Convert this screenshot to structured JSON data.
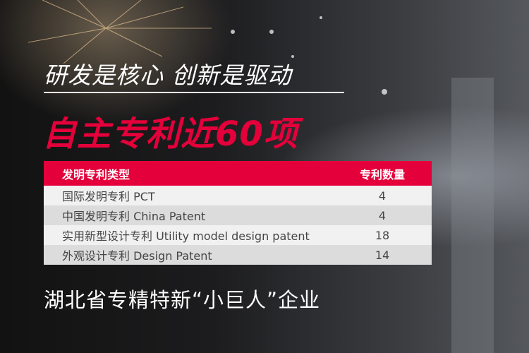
{
  "headline": "研发是核心 创新是驱动",
  "highlight": "自主专利近60项",
  "table": {
    "headers": [
      "发明专利类型",
      "专利数量"
    ],
    "rows": [
      {
        "type": "国际发明专利   PCT",
        "count": "4"
      },
      {
        "type": "中国发明专利   China Patent",
        "count": "4"
      },
      {
        "type": "实用新型设计专利  Utility model design patent",
        "count": "18"
      },
      {
        "type": "外观设计专利  Design Patent",
        "count": "14"
      }
    ]
  },
  "footer": "湖北省专精特新“小巨人”企业",
  "colors": {
    "accent": "#e4003a"
  }
}
